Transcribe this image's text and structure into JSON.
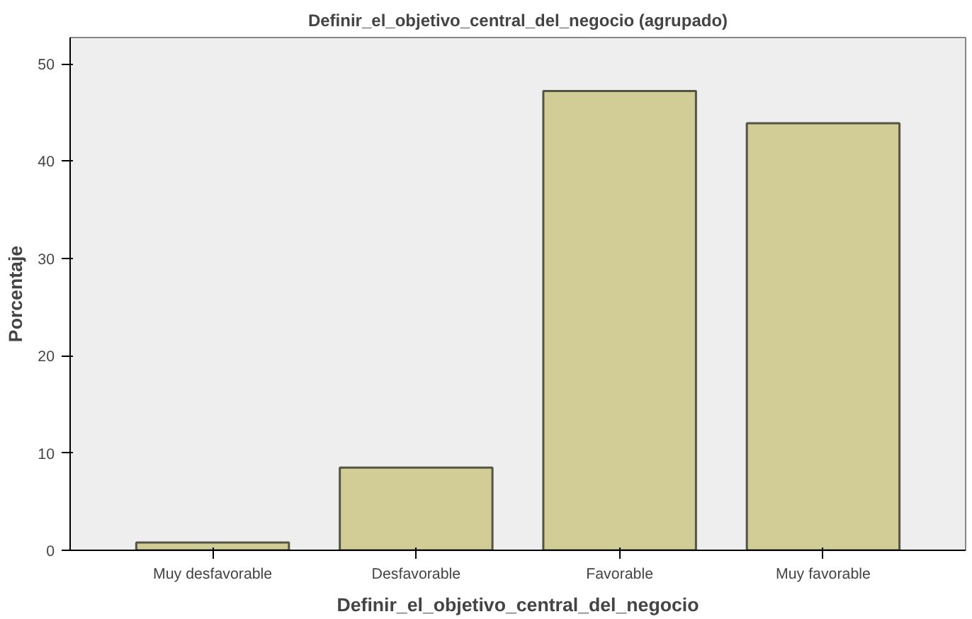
{
  "chart_data": {
    "type": "bar",
    "title": "Definir_el_objetivo_central_del_negocio (agrupado)",
    "xlabel": "Definir_el_objetivo_central_del_negocio",
    "ylabel": "Porcentaje",
    "categories": [
      "Muy desfavorable",
      "Desfavorable",
      "Favorable",
      "Muy favorable"
    ],
    "values": [
      0.8,
      8.5,
      47.2,
      43.9
    ],
    "color": "#d2cc96",
    "ylim": [
      0,
      52.7
    ],
    "yticks": [
      0,
      10,
      20,
      30,
      40,
      50
    ],
    "grid": false
  }
}
